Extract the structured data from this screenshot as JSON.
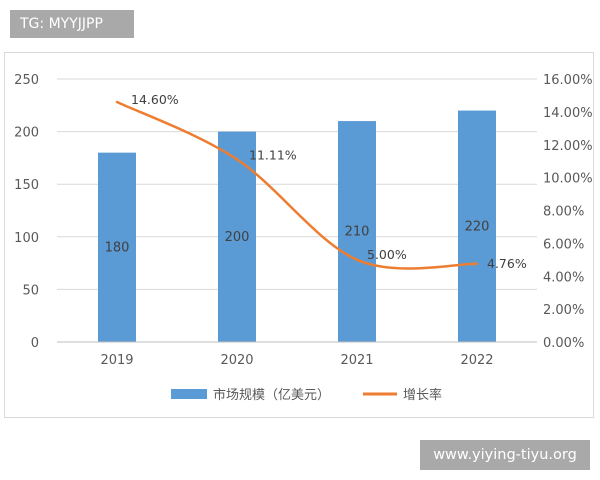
{
  "watermark_tag": "TG: MYYJJPP",
  "site_watermark": "www.yiying-tiyu.org",
  "colors": {
    "bar": "#5b9bd5",
    "line": "#ed7d31",
    "grid": "#d9d9d9",
    "text": "#595959"
  },
  "chart_data": {
    "type": "bar",
    "categories": [
      "2019",
      "2020",
      "2021",
      "2022"
    ],
    "series": [
      {
        "name": "市场规模（亿美元）",
        "type": "bar",
        "axis": "left",
        "values": [
          180,
          200,
          210,
          220
        ],
        "labels": [
          "180",
          "200",
          "210",
          "220"
        ]
      },
      {
        "name": "增长率",
        "type": "line",
        "axis": "right",
        "values": [
          14.6,
          11.11,
          5.0,
          4.76
        ],
        "labels": [
          "14.60%",
          "11.11%",
          "5.00%",
          "4.76%"
        ]
      }
    ],
    "left_axis": {
      "range": [
        0,
        250
      ],
      "ticks": [
        "0",
        "50",
        "100",
        "150",
        "200",
        "250"
      ]
    },
    "right_axis": {
      "range": [
        0,
        16
      ],
      "ticks": [
        "0.00%",
        "2.00%",
        "4.00%",
        "6.00%",
        "8.00%",
        "10.00%",
        "12.00%",
        "14.00%",
        "16.00%"
      ]
    },
    "grid": true,
    "legend_position": "bottom"
  }
}
